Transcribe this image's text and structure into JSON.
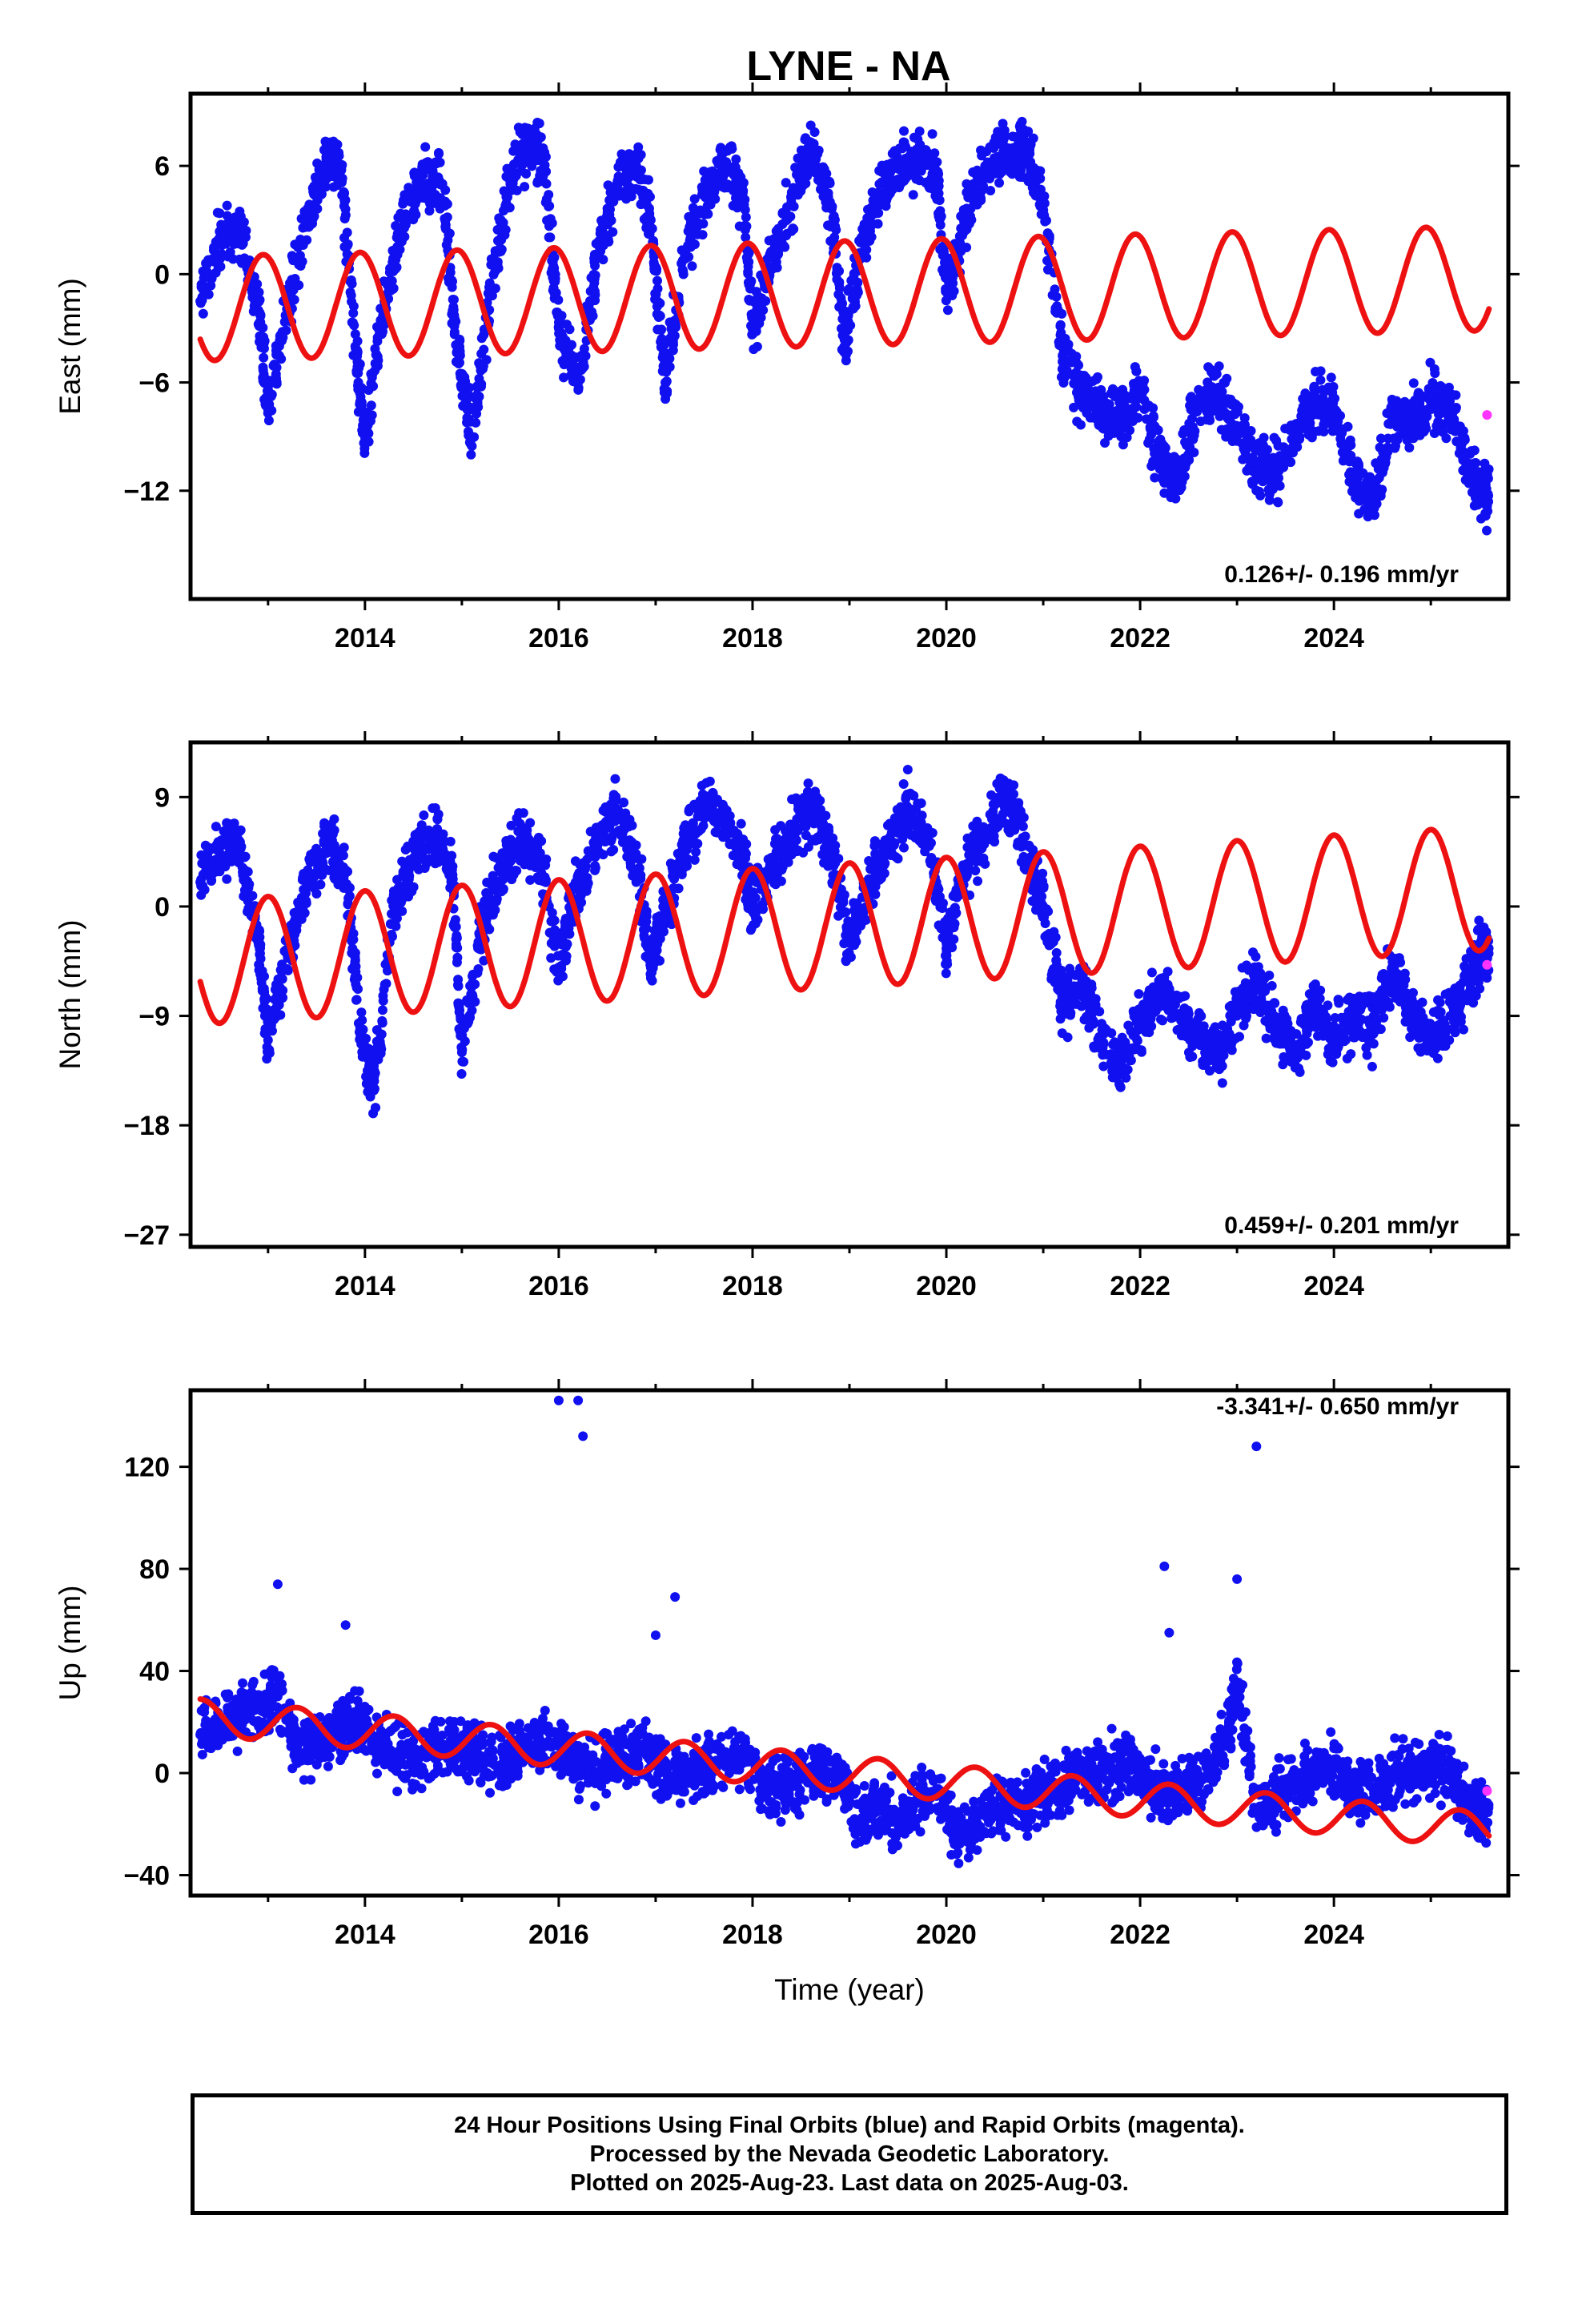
{
  "chart_data": [
    {
      "type": "scatter",
      "title": "LYNE - NA",
      "ylabel": "East (mm)",
      "xlabel": "",
      "xlim": [
        2012.2,
        2025.8
      ],
      "ylim": [
        -18,
        10
      ],
      "xticks": [
        2014,
        2016,
        2018,
        2020,
        2022,
        2024
      ],
      "yticks": [
        6,
        0,
        -6,
        -12
      ],
      "rate_label": "0.126+/- 0.196 mm/yr",
      "series": [
        {
          "role": "final-orbits",
          "color": "#1010f0",
          "x": [
            2012.3,
            2012.5,
            2012.7,
            2012.9,
            2013.0,
            2013.2,
            2013.4,
            2013.6,
            2013.75,
            2013.9,
            2014.0,
            2014.2,
            2014.4,
            2014.6,
            2014.8,
            2014.95,
            2015.1,
            2015.3,
            2015.5,
            2015.7,
            2015.85,
            2016.0,
            2016.2,
            2016.4,
            2016.6,
            2016.8,
            2016.95,
            2017.1,
            2017.3,
            2017.5,
            2017.7,
            2017.9,
            2018.0,
            2018.2,
            2018.4,
            2018.6,
            2018.8,
            2018.95,
            2019.1,
            2019.3,
            2019.5,
            2019.7,
            2019.9,
            2020.0,
            2020.2,
            2020.4,
            2020.6,
            2020.8,
            2021.0,
            2021.2,
            2021.4,
            2021.6,
            2021.8,
            2022.0,
            2022.2,
            2022.4,
            2022.6,
            2022.8,
            2023.0,
            2023.2,
            2023.4,
            2023.6,
            2023.8,
            2024.0,
            2024.2,
            2024.4,
            2024.6,
            2024.8,
            2025.0,
            2025.2,
            2025.4,
            2025.5
          ],
          "y": [
            -1.5,
            2.0,
            2.5,
            -2.0,
            -7.5,
            -1.5,
            3.0,
            6.5,
            6.0,
            -4.0,
            -9.0,
            -1.5,
            3.0,
            5.5,
            5.0,
            -4.0,
            -9.0,
            -1.0,
            5.0,
            7.5,
            6.0,
            -3.0,
            -6.0,
            1.0,
            5.0,
            6.0,
            3.0,
            -6.0,
            1.0,
            4.5,
            6.0,
            4.5,
            -3.0,
            1.0,
            4.0,
            7.0,
            4.0,
            -4.0,
            1.0,
            4.5,
            6.0,
            6.5,
            5.5,
            -1.0,
            3.0,
            6.0,
            6.5,
            7.0,
            4.0,
            -4.5,
            -6.5,
            -7.5,
            -8.0,
            -6.5,
            -10.0,
            -11.5,
            -7.0,
            -6.5,
            -8.5,
            -11.0,
            -11.0,
            -8.5,
            -7.0,
            -7.5,
            -11.0,
            -12.5,
            -8.0,
            -8.0,
            -7.0,
            -7.5,
            -10.5,
            -12.0
          ]
        },
        {
          "role": "rapid-orbits",
          "color": "#ff33ff",
          "x": [
            2025.58
          ],
          "y": [
            -7.8
          ]
        },
        {
          "role": "model",
          "color": "#ee1111",
          "params": {
            "offset": -1.9,
            "trend_per_year": 0.126,
            "t0": 2012.3,
            "annual_amp": 2.9,
            "annual_phase_year": 0.4
          }
        }
      ]
    },
    {
      "type": "scatter",
      "title": "",
      "ylabel": "North (mm)",
      "xlabel": "",
      "xlim": [
        2012.2,
        2025.8
      ],
      "ylim": [
        -28,
        13.5
      ],
      "xticks": [
        2014,
        2016,
        2018,
        2020,
        2022,
        2024
      ],
      "yticks": [
        9,
        0,
        -9,
        -18,
        -27
      ],
      "rate_label": "0.459+/- 0.201 mm/yr",
      "series": [
        {
          "role": "final-orbits",
          "color": "#1010f0",
          "x": [
            2012.3,
            2012.5,
            2012.7,
            2012.9,
            2013.0,
            2013.2,
            2013.4,
            2013.6,
            2013.8,
            2013.95,
            2014.1,
            2014.3,
            2014.5,
            2014.7,
            2014.9,
            2015.0,
            2015.2,
            2015.4,
            2015.6,
            2015.8,
            2016.0,
            2016.2,
            2016.4,
            2016.6,
            2016.8,
            2016.95,
            2017.1,
            2017.3,
            2017.5,
            2017.7,
            2017.9,
            2018.0,
            2018.2,
            2018.4,
            2018.6,
            2018.8,
            2019.0,
            2019.2,
            2019.4,
            2019.6,
            2019.8,
            2020.0,
            2020.2,
            2020.4,
            2020.6,
            2020.8,
            2021.0,
            2021.2,
            2021.4,
            2021.6,
            2021.8,
            2022.0,
            2022.2,
            2022.4,
            2022.6,
            2022.8,
            2023.0,
            2023.2,
            2023.4,
            2023.6,
            2023.8,
            2024.0,
            2024.2,
            2024.4,
            2024.6,
            2024.8,
            2025.0,
            2025.2,
            2025.4,
            2025.5
          ],
          "y": [
            2.0,
            5.0,
            4.5,
            -3.0,
            -11.0,
            -4.0,
            2.0,
            5.0,
            3.0,
            -10.0,
            -15.0,
            0.0,
            4.0,
            6.0,
            3.0,
            -12.0,
            -2.0,
            3.0,
            5.5,
            4.0,
            -5.0,
            2.0,
            5.0,
            8.0,
            4.0,
            -5.0,
            0.0,
            5.0,
            8.5,
            7.0,
            4.0,
            0.0,
            3.0,
            6.0,
            8.0,
            5.0,
            -3.0,
            2.0,
            5.0,
            8.0,
            6.0,
            -3.0,
            3.0,
            6.0,
            9.0,
            5.0,
            0.0,
            -8.0,
            -6.0,
            -11.0,
            -13.0,
            -10.0,
            -6.5,
            -9.0,
            -11.0,
            -12.0,
            -9.0,
            -6.0,
            -10.0,
            -12.0,
            -8.0,
            -11.0,
            -9.0,
            -10.0,
            -5.0,
            -9.0,
            -11.0,
            -9.0,
            -6.0,
            -4.0
          ]
        },
        {
          "role": "rapid-orbits",
          "color": "#ff33ff",
          "x": [
            2025.58
          ],
          "y": [
            -4.8
          ]
        },
        {
          "role": "model",
          "color": "#ee1111",
          "params": {
            "offset": -4.6,
            "trend_per_year": 0.459,
            "t0": 2012.3,
            "annual_amp": 5.1,
            "annual_phase_year": 0.45
          }
        }
      ]
    },
    {
      "type": "scatter",
      "title": "",
      "ylabel": "Up (mm)",
      "xlabel": "Time (year)",
      "xlim": [
        2012.2,
        2025.8
      ],
      "ylim": [
        -48,
        150
      ],
      "xticks": [
        2014,
        2016,
        2018,
        2020,
        2022,
        2024
      ],
      "yticks": [
        120,
        80,
        40,
        0,
        -40
      ],
      "rate_label": "-3.341+/- 0.650 mm/yr",
      "series": [
        {
          "role": "final-orbits",
          "color": "#1010f0",
          "x": [
            2012.3,
            2012.5,
            2012.7,
            2012.9,
            2013.1,
            2013.3,
            2013.5,
            2013.7,
            2013.9,
            2014.1,
            2014.3,
            2014.5,
            2014.7,
            2014.9,
            2015.1,
            2015.3,
            2015.5,
            2015.7,
            2015.9,
            2016.1,
            2016.3,
            2016.5,
            2016.7,
            2016.9,
            2017.1,
            2017.3,
            2017.5,
            2017.7,
            2017.9,
            2018.1,
            2018.3,
            2018.5,
            2018.7,
            2018.9,
            2019.1,
            2019.3,
            2019.5,
            2019.7,
            2019.9,
            2020.1,
            2020.3,
            2020.5,
            2020.7,
            2020.9,
            2021.1,
            2021.3,
            2021.5,
            2021.7,
            2021.9,
            2022.1,
            2022.3,
            2022.5,
            2022.7,
            2022.9,
            2023.0,
            2023.2,
            2023.4,
            2023.6,
            2023.8,
            2024.0,
            2024.2,
            2024.4,
            2024.6,
            2024.8,
            2025.0,
            2025.2,
            2025.4,
            2025.5
          ],
          "y": [
            15,
            18,
            22,
            26,
            30,
            10,
            12,
            15,
            22,
            14,
            8,
            5,
            8,
            12,
            10,
            4,
            6,
            10,
            12,
            6,
            2,
            4,
            6,
            8,
            0,
            -2,
            2,
            4,
            8,
            -4,
            -6,
            -2,
            2,
            0,
            -20,
            -15,
            -18,
            -10,
            -8,
            -25,
            -20,
            -15,
            -12,
            -10,
            -5,
            -2,
            0,
            2,
            4,
            -5,
            -8,
            -4,
            -2,
            15,
            35,
            -15,
            -10,
            -5,
            0,
            2,
            -8,
            -6,
            -2,
            0,
            2,
            0,
            -12,
            -15
          ]
        },
        {
          "role": "final-orbits-outliers",
          "color": "#1010f0",
          "x": [
            2013.1,
            2013.8,
            2016.0,
            2016.2,
            2016.25,
            2017.0,
            2017.2,
            2022.25,
            2022.3,
            2023.0,
            2023.2
          ],
          "y": [
            74,
            58,
            146,
            146,
            132,
            54,
            69,
            81,
            55,
            76,
            128
          ]
        },
        {
          "role": "rapid-orbits",
          "color": "#ff33ff",
          "x": [
            2025.58
          ],
          "y": [
            -7
          ]
        },
        {
          "role": "model",
          "color": "#ee1111",
          "params": {
            "offset": 22.0,
            "trend_per_year": -3.341,
            "t0": 2012.3,
            "annual_amp": 7.0,
            "annual_phase_year": 0.75
          }
        }
      ]
    }
  ],
  "footer": {
    "line1": "24 Hour Positions Using Final Orbits (blue) and Rapid Orbits (magenta).",
    "line2": "Processed by the Nevada Geodetic Laboratory.",
    "line3": "Plotted on 2025-Aug-23. Last data on 2025-Aug-03."
  }
}
